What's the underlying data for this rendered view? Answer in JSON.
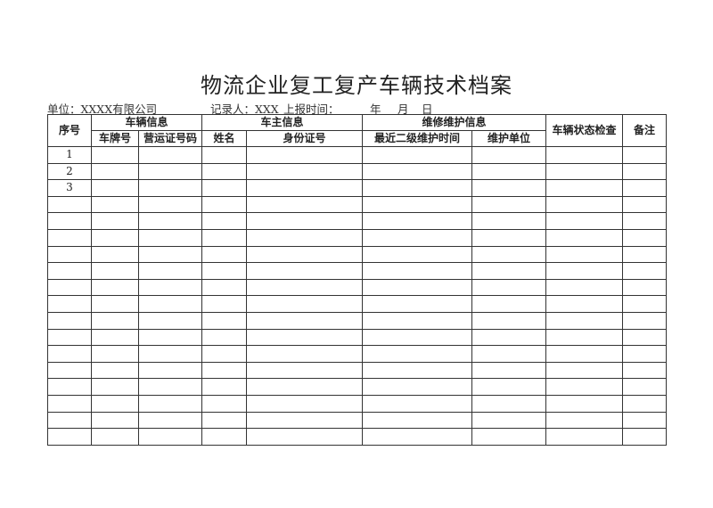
{
  "title": "物流企业复工复产车辆技术档案",
  "meta": {
    "unit": "单位：XXXX有限公司",
    "recorder": "记录人：XXX",
    "report_time_label": "上报时间：",
    "year": "年",
    "month": "月",
    "day": "日"
  },
  "headers": {
    "seq": "序号",
    "vehicle_info": "车辆信息",
    "owner_info": "车主信息",
    "maintenance_info": "维修维护信息",
    "status_check": "车辆状态检查",
    "remarks": "备注",
    "plate": "车牌号",
    "permit": "营运证号码",
    "name": "姓名",
    "id_number": "身份证号",
    "last_maintenance": "最近二级维护时间",
    "maintenance_unit": "维护单位"
  },
  "rows": [
    "1",
    "2",
    "3",
    "",
    "",
    "",
    "",
    "",
    "",
    "",
    "",
    "",
    "",
    "",
    "",
    "",
    "",
    ""
  ]
}
